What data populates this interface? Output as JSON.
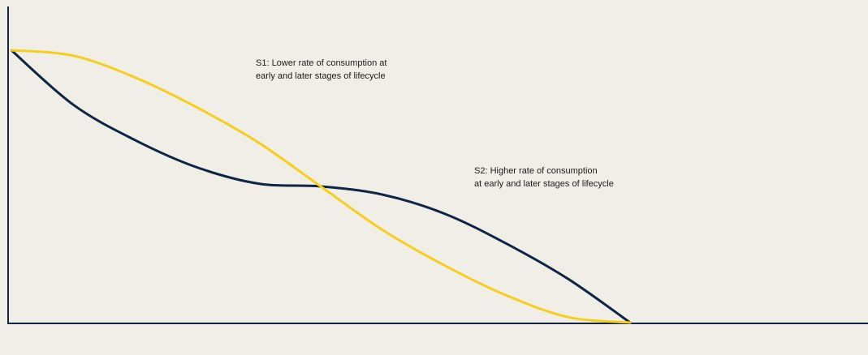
{
  "chart_data": {
    "type": "line",
    "title": "",
    "xlabel": "",
    "ylabel": "",
    "grid": false,
    "xlim": [
      0,
      1
    ],
    "ylim": [
      0,
      1
    ],
    "series": [
      {
        "name": "S1: Lower rate of consumption at early and later stages of lifecycle",
        "color": "#f5cf1c",
        "x": [
          0,
          0.1,
          0.2,
          0.3,
          0.4,
          0.5,
          0.6,
          0.7,
          0.8,
          0.9,
          1.0
        ],
        "y": [
          1.0,
          0.98,
          0.9,
          0.79,
          0.66,
          0.5,
          0.34,
          0.21,
          0.1,
          0.02,
          0.0
        ]
      },
      {
        "name": "S2: Higher rate of consumption at early and later stages of lifecycle",
        "color": "#0e2544",
        "x": [
          0,
          0.1,
          0.2,
          0.3,
          0.4,
          0.5,
          0.6,
          0.7,
          0.8,
          0.9,
          1.0
        ],
        "y": [
          1.0,
          0.8,
          0.67,
          0.57,
          0.51,
          0.5,
          0.47,
          0.4,
          0.29,
          0.16,
          0.0
        ]
      }
    ],
    "annotations": [
      {
        "text_lines": [
          "S1: Lower rate of consumption at",
          "early and later stages of lifecycle"
        ]
      },
      {
        "text_lines": [
          "S2: Higher rate of consumption",
          "at early and later stages of lifecycle"
        ]
      }
    ],
    "axis_color": "#0e2544"
  }
}
